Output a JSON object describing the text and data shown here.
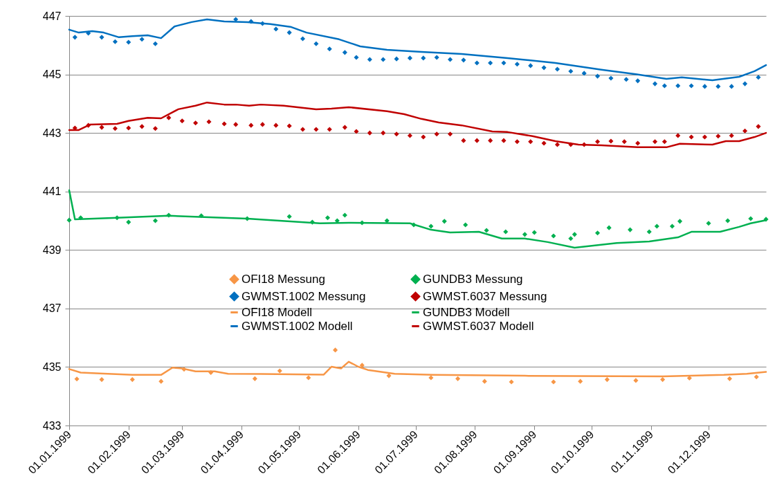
{
  "chart_data": {
    "type": "line",
    "xlim": [
      "1999-01-01",
      "1999-12-31"
    ],
    "ylim": [
      433,
      447
    ],
    "yticks": [
      433,
      435,
      437,
      439,
      441,
      443,
      445,
      447
    ],
    "xticks": [
      {
        "value": "1999-01-01",
        "label": "01.01.1999"
      },
      {
        "value": "1999-02-01",
        "label": "01.02.1999"
      },
      {
        "value": "1999-03-01",
        "label": "01.03.1999"
      },
      {
        "value": "1999-04-01",
        "label": "01.04.1999"
      },
      {
        "value": "1999-05-01",
        "label": "01.05.1999"
      },
      {
        "value": "1999-06-01",
        "label": "01.06.1999"
      },
      {
        "value": "1999-07-01",
        "label": "01.07.1999"
      },
      {
        "value": "1999-08-01",
        "label": "01.08.1999"
      },
      {
        "value": "1999-09-01",
        "label": "01.09.1999"
      },
      {
        "value": "1999-10-01",
        "label": "01.10.1999"
      },
      {
        "value": "1999-11-01",
        "label": "01.11.1999"
      },
      {
        "value": "1999-12-01",
        "label": "01.12.1999"
      }
    ],
    "grid": "y",
    "legend": "center",
    "series": [
      {
        "name": "OFI18 Messung",
        "type": "scatter",
        "marker": "diamond",
        "color": "#f79646",
        "x": [
          "1999-01-05",
          "1999-01-18",
          "1999-02-03",
          "1999-02-18",
          "1999-03-02",
          "1999-03-16",
          "1999-04-08",
          "1999-04-21",
          "1999-05-06",
          "1999-05-20",
          "1999-06-03",
          "1999-06-17",
          "1999-07-09",
          "1999-07-23",
          "1999-08-06",
          "1999-08-20",
          "1999-09-11",
          "1999-09-25",
          "1999-10-09",
          "1999-10-24",
          "1999-11-07",
          "1999-11-21",
          "1999-12-12",
          "1999-12-26"
        ],
        "values": [
          434.59,
          434.57,
          434.57,
          434.51,
          434.92,
          434.81,
          434.6,
          434.87,
          434.63,
          435.58,
          435.06,
          434.7,
          434.63,
          434.6,
          434.51,
          434.49,
          434.49,
          434.51,
          434.57,
          434.54,
          434.57,
          434.62,
          434.6,
          434.66
        ]
      },
      {
        "name": "GUNDB3 Messung",
        "type": "scatter",
        "marker": "diamond",
        "color": "#00b050",
        "x": [
          "1999-01-01",
          "1999-01-07",
          "1999-01-26",
          "1999-02-01",
          "1999-02-15",
          "1999-02-22",
          "1999-03-11",
          "1999-04-04",
          "1999-04-26",
          "1999-05-08",
          "1999-05-16",
          "1999-05-21",
          "1999-05-25",
          "1999-06-03",
          "1999-06-16",
          "1999-06-30",
          "1999-07-09",
          "1999-07-16",
          "1999-07-27",
          "1999-08-07",
          "1999-08-17",
          "1999-08-27",
          "1999-09-01",
          "1999-09-11",
          "1999-09-20",
          "1999-09-22",
          "1999-10-04",
          "1999-10-10",
          "1999-10-21",
          "1999-10-31",
          "1999-11-04",
          "1999-11-12",
          "1999-11-16",
          "1999-12-01",
          "1999-12-11",
          "1999-12-23",
          "1999-12-31"
        ],
        "values": [
          440.02,
          440.1,
          440.1,
          439.95,
          440.0,
          440.19,
          440.17,
          440.07,
          440.14,
          439.95,
          440.1,
          440.0,
          440.19,
          439.93,
          440.0,
          439.86,
          439.81,
          439.98,
          439.86,
          439.67,
          439.62,
          439.53,
          439.6,
          439.48,
          439.39,
          439.53,
          439.58,
          439.76,
          439.69,
          439.62,
          439.81,
          439.81,
          439.98,
          439.91,
          440.0,
          440.07,
          440.05
        ]
      },
      {
        "name": "GWMST.1002 Messung",
        "type": "scatter",
        "marker": "diamond",
        "color": "#0070c0",
        "x": [
          "1999-01-04",
          "1999-01-11",
          "1999-01-18",
          "1999-01-25",
          "1999-02-01",
          "1999-02-08",
          "1999-02-15",
          "1999-03-29",
          "1999-04-06",
          "1999-04-12",
          "1999-04-19",
          "1999-04-26",
          "1999-05-03",
          "1999-05-10",
          "1999-05-17",
          "1999-05-25",
          "1999-05-31",
          "1999-06-07",
          "1999-06-14",
          "1999-06-21",
          "1999-06-28",
          "1999-07-05",
          "1999-07-12",
          "1999-07-19",
          "1999-07-26",
          "1999-08-02",
          "1999-08-09",
          "1999-08-16",
          "1999-08-23",
          "1999-08-30",
          "1999-09-06",
          "1999-09-13",
          "1999-09-20",
          "1999-09-27",
          "1999-10-04",
          "1999-10-11",
          "1999-10-19",
          "1999-10-25",
          "1999-11-03",
          "1999-11-08",
          "1999-11-15",
          "1999-11-22",
          "1999-11-29",
          "1999-12-06",
          "1999-12-13",
          "1999-12-20",
          "1999-12-27"
        ],
        "values": [
          446.27,
          446.41,
          446.27,
          446.12,
          446.1,
          446.2,
          446.05,
          446.88,
          446.81,
          446.74,
          446.55,
          446.43,
          446.22,
          446.05,
          445.87,
          445.75,
          445.58,
          445.51,
          445.51,
          445.53,
          445.56,
          445.56,
          445.58,
          445.51,
          445.49,
          445.39,
          445.39,
          445.39,
          445.35,
          445.3,
          445.23,
          445.18,
          445.11,
          445.04,
          444.94,
          444.87,
          444.83,
          444.78,
          444.68,
          444.61,
          444.61,
          444.61,
          444.59,
          444.59,
          444.59,
          444.68,
          444.9
        ]
      },
      {
        "name": "GWMST.6037 Messung",
        "type": "scatter",
        "marker": "diamond",
        "color": "#c00000",
        "x": [
          "1999-01-04",
          "1999-01-11",
          "1999-01-18",
          "1999-01-25",
          "1999-02-01",
          "1999-02-08",
          "1999-02-15",
          "1999-02-22",
          "1999-03-01",
          "1999-03-08",
          "1999-03-15",
          "1999-03-23",
          "1999-03-29",
          "1999-04-06",
          "1999-04-12",
          "1999-04-19",
          "1999-04-26",
          "1999-05-03",
          "1999-05-10",
          "1999-05-17",
          "1999-05-25",
          "1999-05-31",
          "1999-06-07",
          "1999-06-14",
          "1999-06-21",
          "1999-06-28",
          "1999-07-05",
          "1999-07-12",
          "1999-07-19",
          "1999-07-26",
          "1999-08-02",
          "1999-08-09",
          "1999-08-16",
          "1999-08-23",
          "1999-08-30",
          "1999-09-06",
          "1999-09-13",
          "1999-09-20",
          "1999-09-27",
          "1999-10-04",
          "1999-10-11",
          "1999-10-18",
          "1999-10-25",
          "1999-11-03",
          "1999-11-08",
          "1999-11-15",
          "1999-11-22",
          "1999-11-29",
          "1999-12-06",
          "1999-12-13",
          "1999-12-20",
          "1999-12-27"
        ],
        "values": [
          443.17,
          443.26,
          443.19,
          443.15,
          443.17,
          443.22,
          443.15,
          443.52,
          443.41,
          443.34,
          443.38,
          443.31,
          443.29,
          443.26,
          443.29,
          443.26,
          443.24,
          443.12,
          443.12,
          443.12,
          443.19,
          443.05,
          443.0,
          443.0,
          442.96,
          442.91,
          442.86,
          442.96,
          442.96,
          442.74,
          442.74,
          442.74,
          442.74,
          442.7,
          442.7,
          442.65,
          442.6,
          442.6,
          442.6,
          442.7,
          442.72,
          442.7,
          442.65,
          442.7,
          442.7,
          442.91,
          442.86,
          442.86,
          442.89,
          442.91,
          443.07,
          443.22
        ]
      },
      {
        "name": "OFI18 Modell",
        "type": "line",
        "color": "#f79646",
        "x": [
          "1999-01-01",
          "1999-01-07",
          "1999-01-17",
          "1999-02-03",
          "1999-02-18",
          "1999-02-24",
          "1999-03-01",
          "1999-03-08",
          "1999-03-18",
          "1999-03-25",
          "1999-04-11",
          "1999-05-14",
          "1999-05-18",
          "1999-05-23",
          "1999-05-27",
          "1999-06-01",
          "1999-06-06",
          "1999-06-20",
          "1999-07-10",
          "1999-08-27",
          "1999-11-07",
          "1999-12-09",
          "1999-12-21",
          "1999-12-31"
        ],
        "values": [
          434.93,
          434.81,
          434.78,
          434.73,
          434.73,
          434.98,
          434.95,
          434.85,
          434.85,
          434.77,
          434.76,
          434.74,
          435.01,
          434.95,
          435.18,
          435.01,
          434.9,
          434.77,
          434.73,
          434.7,
          434.68,
          434.73,
          434.77,
          434.83
        ]
      },
      {
        "name": "GUNDB3 Modell",
        "type": "line",
        "color": "#00b050",
        "x": [
          "1999-01-01",
          "1999-01-04",
          "1999-01-26",
          "1999-02-22",
          "1999-04-04",
          "1999-05-12",
          "1999-05-27",
          "1999-06-28",
          "1999-07-09",
          "1999-07-19",
          "1999-08-03",
          "1999-08-15",
          "1999-08-27",
          "1999-09-08",
          "1999-09-22",
          "1999-10-14",
          "1999-10-31",
          "1999-11-15",
          "1999-11-22",
          "1999-12-07",
          "1999-12-17",
          "1999-12-23",
          "1999-12-31"
        ],
        "values": [
          441.04,
          440.05,
          440.1,
          440.17,
          440.07,
          439.91,
          439.93,
          439.91,
          439.69,
          439.6,
          439.62,
          439.39,
          439.39,
          439.27,
          439.08,
          439.24,
          439.29,
          439.43,
          439.62,
          439.62,
          439.79,
          439.91,
          440.02
        ]
      },
      {
        "name": "GWMST.1002 Modell",
        "type": "line",
        "color": "#0070c0",
        "x": [
          "1999-01-01",
          "1999-01-06",
          "1999-01-13",
          "1999-01-19",
          "1999-01-27",
          "1999-02-03",
          "1999-02-11",
          "1999-02-18",
          "1999-02-25",
          "1999-03-06",
          "1999-03-14",
          "1999-03-23",
          "1999-04-04",
          "1999-04-16",
          "1999-04-27",
          "1999-05-05",
          "1999-05-22",
          "1999-06-02",
          "1999-06-16",
          "1999-07-04",
          "1999-07-25",
          "1999-08-18",
          "1999-09-12",
          "1999-10-06",
          "1999-10-24",
          "1999-11-09",
          "1999-11-17",
          "1999-12-03",
          "1999-12-17",
          "1999-12-25",
          "1999-12-31"
        ],
        "values": [
          446.53,
          446.43,
          446.48,
          446.43,
          446.27,
          446.31,
          446.34,
          446.24,
          446.64,
          446.79,
          446.88,
          446.81,
          446.79,
          446.72,
          446.62,
          446.43,
          446.2,
          445.96,
          445.84,
          445.77,
          445.7,
          445.56,
          445.39,
          445.16,
          445.01,
          444.85,
          444.9,
          444.8,
          444.92,
          445.11,
          445.32
        ]
      },
      {
        "name": "GWMST.6037 Modell",
        "type": "line",
        "color": "#c00000",
        "x": [
          "1999-01-01",
          "1999-01-06",
          "1999-01-12",
          "1999-01-26",
          "1999-02-01",
          "1999-02-11",
          "1999-02-18",
          "1999-02-27",
          "1999-03-08",
          "1999-03-14",
          "1999-03-23",
          "1999-03-29",
          "1999-04-05",
          "1999-04-11",
          "1999-04-23",
          "1999-05-10",
          "1999-05-18",
          "1999-05-27",
          "1999-06-16",
          "1999-06-25",
          "1999-07-04",
          "1999-07-13",
          "1999-07-25",
          "1999-08-10",
          "1999-08-18",
          "1999-08-31",
          "1999-09-12",
          "1999-09-24",
          "1999-10-06",
          "1999-10-25",
          "1999-11-09",
          "1999-11-16",
          "1999-12-03",
          "1999-12-10",
          "1999-12-17",
          "1999-12-25",
          "1999-12-31"
        ],
        "values": [
          443.1,
          443.1,
          443.29,
          443.31,
          443.41,
          443.52,
          443.5,
          443.81,
          443.93,
          444.04,
          443.97,
          443.97,
          443.93,
          443.97,
          443.93,
          443.81,
          443.83,
          443.88,
          443.74,
          443.64,
          443.48,
          443.36,
          443.26,
          443.05,
          443.03,
          442.89,
          442.72,
          442.6,
          442.58,
          442.51,
          442.51,
          442.63,
          442.6,
          442.72,
          442.72,
          442.86,
          443.0
        ]
      }
    ]
  }
}
